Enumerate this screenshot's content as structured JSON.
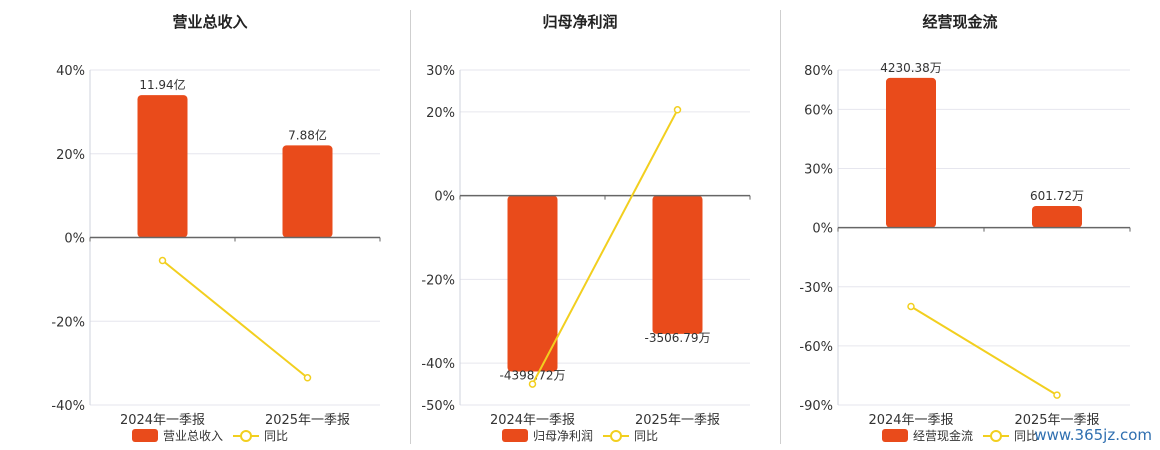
{
  "chart_data": [
    {
      "type": "bar+line",
      "title": "营业总收入",
      "categories": [
        "2024年一季报",
        "2025年一季报"
      ],
      "series": [
        {
          "name": "营业总收入",
          "type": "bar",
          "values": [
            34.0,
            22.0
          ],
          "labels": [
            "11.94亿",
            "7.88亿"
          ],
          "color": "#e94b1b"
        },
        {
          "name": "同比",
          "type": "line",
          "values": [
            -5.5,
            -33.5
          ],
          "color": "#f2cf1f"
        }
      ],
      "yticks": [
        40,
        20,
        0,
        -20,
        -40
      ],
      "ytick_labels": [
        "40%",
        "20%",
        "0%",
        "-20%",
        "-40%"
      ],
      "ylim": [
        -40,
        40
      ],
      "grid": true,
      "legend": "bottom"
    },
    {
      "type": "bar+line",
      "title": "归母净利润",
      "categories": [
        "2024年一季报",
        "2025年一季报"
      ],
      "series": [
        {
          "name": "归母净利润",
          "type": "bar",
          "values": [
            -42.0,
            -33.0
          ],
          "labels": [
            "-4398.72万",
            "-3506.79万"
          ],
          "color": "#e94b1b"
        },
        {
          "name": "同比",
          "type": "line",
          "values": [
            -45.0,
            20.5
          ],
          "color": "#f2cf1f"
        }
      ],
      "yticks": [
        30,
        20,
        0,
        -20,
        -40,
        -50
      ],
      "ytick_labels": [
        "30%",
        "20%",
        "0%",
        "-20%",
        "-40%",
        "-50%"
      ],
      "ylim": [
        -50,
        30
      ],
      "grid": true,
      "legend": "bottom"
    },
    {
      "type": "bar+line",
      "title": "经营现金流",
      "categories": [
        "2024年一季报",
        "2025年一季报"
      ],
      "series": [
        {
          "name": "经营现金流",
          "type": "bar",
          "values": [
            76.0,
            11.0
          ],
          "labels": [
            "4230.38万",
            "601.72万"
          ],
          "color": "#e94b1b"
        },
        {
          "name": "同比",
          "type": "line",
          "values": [
            -40.0,
            -85.0
          ],
          "color": "#f2cf1f"
        }
      ],
      "yticks": [
        80,
        60,
        30,
        0,
        -30,
        -60,
        -90
      ],
      "ytick_labels": [
        "80%",
        "60%",
        "30%",
        "0%",
        "-30%",
        "-60%",
        "-90%"
      ],
      "ylim": [
        -90,
        80
      ],
      "grid": true,
      "legend": "bottom"
    }
  ],
  "watermark": "www.365jz.com"
}
